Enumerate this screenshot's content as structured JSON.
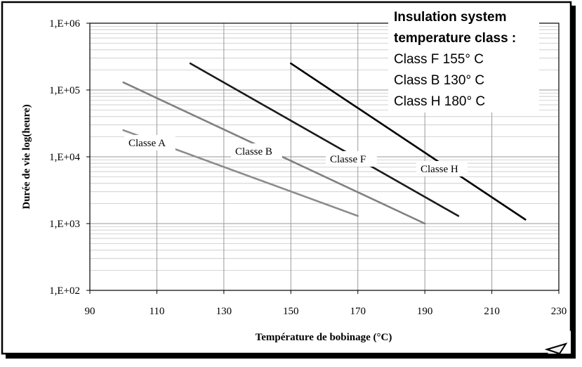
{
  "chart_data": {
    "type": "line",
    "title": "",
    "xlabel": "Température de bobinage (°C)",
    "ylabel": "Durée de vie log(heure)",
    "xlim": [
      90,
      230
    ],
    "ylim": [
      100,
      1000000
    ],
    "y_scale": "log",
    "grid": true,
    "x_ticks": [
      90,
      110,
      130,
      150,
      170,
      190,
      210,
      230
    ],
    "y_ticks": [
      {
        "value": 100,
        "label": "1,E+02"
      },
      {
        "value": 1000,
        "label": "1,E+03"
      },
      {
        "value": 10000,
        "label": "1,E+04"
      },
      {
        "value": 100000,
        "label": "1,E+05"
      },
      {
        "value": 1000000,
        "label": "1,E+06"
      }
    ],
    "series": [
      {
        "name": "Classe A",
        "color": "#8c8c8c",
        "x": [
          100,
          170
        ],
        "y": [
          25000,
          1300
        ]
      },
      {
        "name": "Classe B",
        "color": "#808080",
        "x": [
          100,
          190
        ],
        "y": [
          130000,
          1000
        ]
      },
      {
        "name": "Classe F",
        "color": "#1a1a1a",
        "x": [
          120,
          200
        ],
        "y": [
          250000,
          1300
        ]
      },
      {
        "name": "Classe H",
        "color": "#000000",
        "x": [
          150,
          220
        ],
        "y": [
          250000,
          1150
        ]
      }
    ],
    "notes": [
      {
        "text": "Insulation system",
        "bold": true
      },
      {
        "text": "temperature class :",
        "bold": true
      },
      {
        "text": "Class F 155° C",
        "bold": false
      },
      {
        "text": "Class B 130° C",
        "bold": false
      },
      {
        "text": "Class H 180° C",
        "bold": false
      }
    ]
  }
}
